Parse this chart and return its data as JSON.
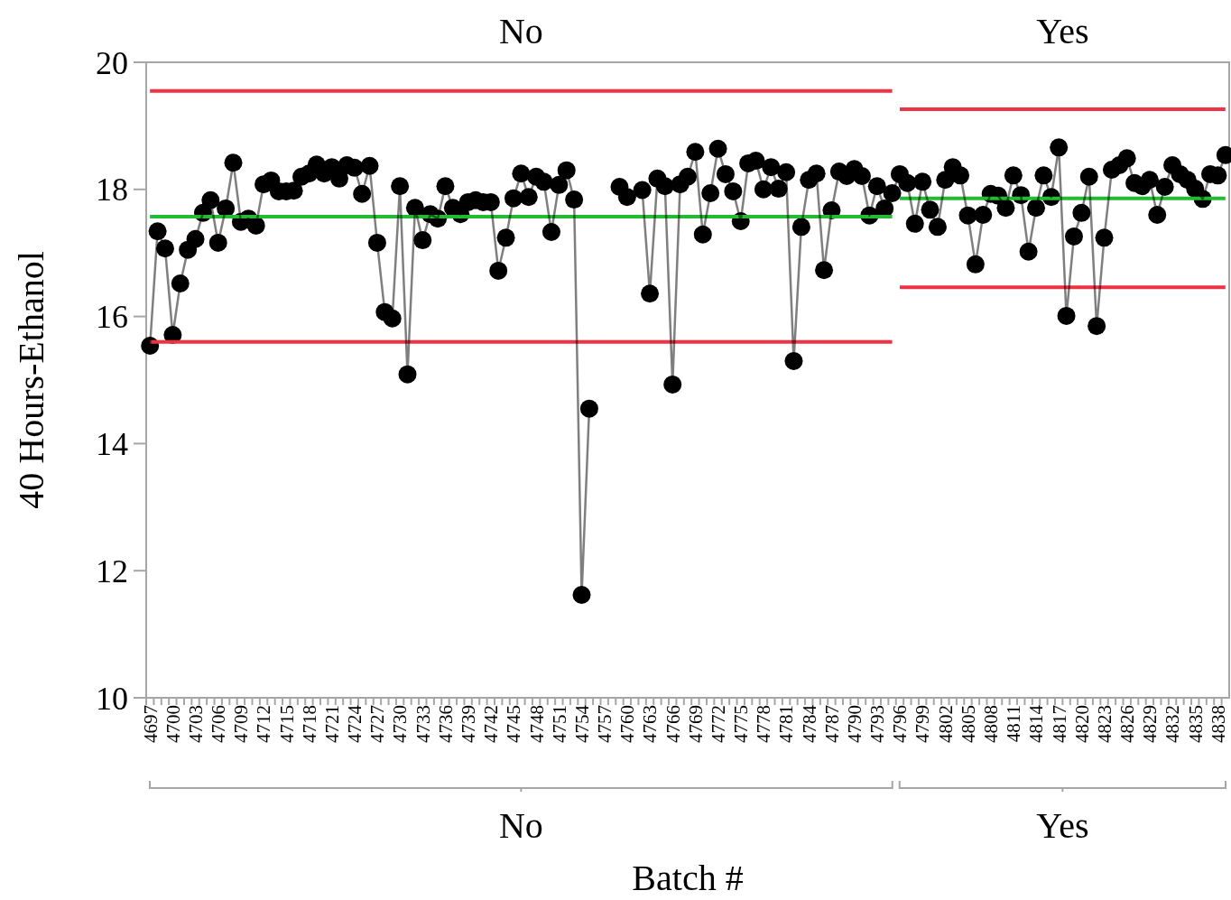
{
  "chart_data": {
    "type": "line",
    "xlabel": "Batch #",
    "ylabel": "40 Hours-Ethanol",
    "categories": [
      "4697",
      null,
      null,
      "4700",
      null,
      null,
      "4703",
      null,
      null,
      "4706",
      null,
      null,
      "4709",
      null,
      null,
      "4712",
      null,
      null,
      "4715",
      null,
      null,
      "4718",
      null,
      null,
      "4721",
      null,
      null,
      "4724",
      null,
      null,
      "4727",
      null,
      null,
      "4730",
      null,
      null,
      "4733",
      null,
      null,
      "4736",
      null,
      null,
      "4739",
      null,
      null,
      "4742",
      null,
      null,
      "4745",
      null,
      null,
      "4748",
      null,
      null,
      "4751",
      null,
      null,
      "4754",
      null,
      null,
      "4757",
      null,
      null,
      "4760",
      null,
      null,
      "4763",
      null,
      null,
      "4766",
      null,
      null,
      "4769",
      null,
      null,
      "4772",
      null,
      null,
      "4775",
      null,
      null,
      "4778",
      null,
      null,
      "4781",
      null,
      null,
      "4784",
      null,
      null,
      "4787",
      null,
      null,
      "4790",
      null,
      null,
      "4793",
      null,
      null,
      "4796",
      null,
      null,
      "4799",
      null,
      null,
      "4802",
      null,
      null,
      "4805",
      null,
      null,
      "4808",
      null,
      null,
      "4811",
      null,
      null,
      "4814",
      null,
      null,
      "4817",
      null,
      null,
      "4820",
      null,
      null,
      "4823",
      null,
      null,
      "4826",
      null,
      null,
      "4829",
      null,
      null,
      "4832",
      null,
      null,
      "4835",
      null,
      null,
      "4838",
      null
    ],
    "series": [
      {
        "color": "#ee3344",
        "values": [
          19.55,
          19.55,
          19.55,
          19.55,
          19.55,
          19.55,
          19.55,
          19.55,
          19.55,
          19.55,
          19.55,
          19.55,
          19.55,
          19.55,
          19.55,
          19.55,
          19.55,
          19.55,
          19.55,
          19.55,
          19.55,
          19.55,
          19.55,
          19.55,
          19.55,
          19.55,
          19.55,
          19.55,
          19.55,
          19.55,
          19.55,
          19.55,
          19.55,
          19.55,
          19.55,
          19.55,
          19.55,
          19.55,
          19.55,
          19.55,
          19.55,
          19.55,
          19.55,
          19.55,
          19.55,
          19.55,
          19.55,
          19.55,
          19.55,
          19.55,
          19.55,
          19.55,
          19.55,
          19.55,
          19.55,
          19.55,
          19.55,
          19.55,
          19.55,
          19.55,
          19.55,
          19.55,
          19.55,
          19.55,
          19.55,
          19.55,
          19.55,
          19.55,
          19.55,
          19.55,
          19.55,
          19.55,
          19.55,
          19.55,
          19.55,
          19.55,
          19.55,
          19.55,
          19.55,
          19.55,
          19.55,
          19.55,
          19.55,
          19.55,
          19.55,
          19.55,
          19.55,
          19.55,
          19.55,
          19.55,
          19.55,
          19.55,
          19.55,
          19.55,
          19.55,
          19.55,
          19.55,
          19.55,
          19.55,
          null,
          null,
          null,
          null,
          null,
          null,
          null,
          null,
          null,
          null,
          null,
          null,
          null,
          null,
          null,
          null,
          null,
          null,
          null,
          null,
          null,
          null,
          null,
          null,
          null,
          null,
          null,
          null,
          null,
          null,
          null,
          null,
          null,
          null,
          null,
          null,
          null,
          null,
          null,
          null,
          null,
          null,
          null,
          null
        ]
      },
      {
        "color": "#22bb33",
        "values": [
          17.57,
          17.57,
          17.57,
          17.57,
          17.57,
          17.57,
          17.57,
          17.57,
          17.57,
          17.57,
          17.57,
          17.57,
          17.57,
          17.57,
          17.57,
          17.57,
          17.57,
          17.57,
          17.57,
          17.57,
          17.57,
          17.57,
          17.57,
          17.57,
          17.57,
          17.57,
          17.57,
          17.57,
          17.57,
          17.57,
          17.57,
          17.57,
          17.57,
          17.57,
          17.57,
          17.57,
          17.57,
          17.57,
          17.57,
          17.57,
          17.57,
          17.57,
          17.57,
          17.57,
          17.57,
          17.57,
          17.57,
          17.57,
          17.57,
          17.57,
          17.57,
          17.57,
          17.57,
          17.57,
          17.57,
          17.57,
          17.57,
          17.57,
          17.57,
          17.57,
          17.57,
          17.57,
          17.57,
          17.57,
          17.57,
          17.57,
          17.57,
          17.57,
          17.57,
          17.57,
          17.57,
          17.57,
          17.57,
          17.57,
          17.57,
          17.57,
          17.57,
          17.57,
          17.57,
          17.57,
          17.57,
          17.57,
          17.57,
          17.57,
          17.57,
          17.57,
          17.57,
          17.57,
          17.57,
          17.57,
          17.57,
          17.57,
          17.57,
          17.57,
          17.57,
          17.57,
          17.57,
          17.57,
          17.57,
          null,
          null,
          null,
          null,
          null,
          null,
          null,
          null,
          null,
          null,
          null,
          null,
          null,
          null,
          null,
          null,
          null,
          null,
          null,
          null,
          null,
          null,
          null,
          null,
          null,
          null,
          null,
          null,
          null,
          null,
          null,
          null,
          null,
          null,
          null,
          null,
          null,
          null,
          null,
          null,
          null,
          null,
          null,
          null
        ]
      },
      {
        "color": "#ee3344",
        "values": [
          15.6,
          15.6,
          15.6,
          15.6,
          15.6,
          15.6,
          15.6,
          15.6,
          15.6,
          15.6,
          15.6,
          15.6,
          15.6,
          15.6,
          15.6,
          15.6,
          15.6,
          15.6,
          15.6,
          15.6,
          15.6,
          15.6,
          15.6,
          15.6,
          15.6,
          15.6,
          15.6,
          15.6,
          15.6,
          15.6,
          15.6,
          15.6,
          15.6,
          15.6,
          15.6,
          15.6,
          15.6,
          15.6,
          15.6,
          15.6,
          15.6,
          15.6,
          15.6,
          15.6,
          15.6,
          15.6,
          15.6,
          15.6,
          15.6,
          15.6,
          15.6,
          15.6,
          15.6,
          15.6,
          15.6,
          15.6,
          15.6,
          15.6,
          15.6,
          15.6,
          15.6,
          15.6,
          15.6,
          15.6,
          15.6,
          15.6,
          15.6,
          15.6,
          15.6,
          15.6,
          15.6,
          15.6,
          15.6,
          15.6,
          15.6,
          15.6,
          15.6,
          15.6,
          15.6,
          15.6,
          15.6,
          15.6,
          15.6,
          15.6,
          15.6,
          15.6,
          15.6,
          15.6,
          15.6,
          15.6,
          15.6,
          15.6,
          15.6,
          15.6,
          15.6,
          15.6,
          15.6,
          15.6,
          15.6,
          null,
          null,
          null,
          null,
          null,
          null,
          null,
          null,
          null,
          null,
          null,
          null,
          null,
          null,
          null,
          null,
          null,
          null,
          null,
          null,
          null,
          null,
          null,
          null,
          null,
          null,
          null,
          null,
          null,
          null,
          null,
          null,
          null,
          null,
          null,
          null,
          null,
          null,
          null,
          null,
          null,
          null,
          null,
          null
        ]
      },
      {
        "color": "#ee3344",
        "values": [
          null,
          null,
          null,
          null,
          null,
          null,
          null,
          null,
          null,
          null,
          null,
          null,
          null,
          null,
          null,
          null,
          null,
          null,
          null,
          null,
          null,
          null,
          null,
          null,
          null,
          null,
          null,
          null,
          null,
          null,
          null,
          null,
          null,
          null,
          null,
          null,
          null,
          null,
          null,
          null,
          null,
          null,
          null,
          null,
          null,
          null,
          null,
          null,
          null,
          null,
          null,
          null,
          null,
          null,
          null,
          null,
          null,
          null,
          null,
          null,
          null,
          null,
          null,
          null,
          null,
          null,
          null,
          null,
          null,
          null,
          null,
          null,
          null,
          null,
          null,
          null,
          null,
          null,
          null,
          null,
          null,
          null,
          null,
          null,
          null,
          null,
          null,
          null,
          null,
          null,
          null,
          null,
          null,
          null,
          null,
          null,
          null,
          null,
          null,
          19.26,
          19.26,
          19.26,
          19.26,
          19.26,
          19.26,
          19.26,
          19.26,
          19.26,
          19.26,
          19.26,
          19.26,
          19.26,
          19.26,
          19.26,
          19.26,
          19.26,
          19.26,
          19.26,
          19.26,
          19.26,
          19.26,
          19.26,
          19.26,
          19.26,
          19.26,
          19.26,
          19.26,
          19.26,
          19.26,
          19.26,
          19.26,
          19.26,
          19.26,
          19.26,
          19.26,
          19.26,
          19.26,
          19.26,
          19.26,
          19.26,
          19.26,
          19.26,
          19.26
        ]
      },
      {
        "color": "#22bb33",
        "values": [
          null,
          null,
          null,
          null,
          null,
          null,
          null,
          null,
          null,
          null,
          null,
          null,
          null,
          null,
          null,
          null,
          null,
          null,
          null,
          null,
          null,
          null,
          null,
          null,
          null,
          null,
          null,
          null,
          null,
          null,
          null,
          null,
          null,
          null,
          null,
          null,
          null,
          null,
          null,
          null,
          null,
          null,
          null,
          null,
          null,
          null,
          null,
          null,
          null,
          null,
          null,
          null,
          null,
          null,
          null,
          null,
          null,
          null,
          null,
          null,
          null,
          null,
          null,
          null,
          null,
          null,
          null,
          null,
          null,
          null,
          null,
          null,
          null,
          null,
          null,
          null,
          null,
          null,
          null,
          null,
          null,
          null,
          null,
          null,
          null,
          null,
          null,
          null,
          null,
          null,
          null,
          null,
          null,
          null,
          null,
          null,
          null,
          null,
          null,
          17.86,
          17.86,
          17.86,
          17.86,
          17.86,
          17.86,
          17.86,
          17.86,
          17.86,
          17.86,
          17.86,
          17.86,
          17.86,
          17.86,
          17.86,
          17.86,
          17.86,
          17.86,
          17.86,
          17.86,
          17.86,
          17.86,
          17.86,
          17.86,
          17.86,
          17.86,
          17.86,
          17.86,
          17.86,
          17.86,
          17.86,
          17.86,
          17.86,
          17.86,
          17.86,
          17.86,
          17.86,
          17.86,
          17.86,
          17.86,
          17.86,
          17.86,
          17.86,
          17.86
        ]
      },
      {
        "color": "#ee3344",
        "values": [
          null,
          null,
          null,
          null,
          null,
          null,
          null,
          null,
          null,
          null,
          null,
          null,
          null,
          null,
          null,
          null,
          null,
          null,
          null,
          null,
          null,
          null,
          null,
          null,
          null,
          null,
          null,
          null,
          null,
          null,
          null,
          null,
          null,
          null,
          null,
          null,
          null,
          null,
          null,
          null,
          null,
          null,
          null,
          null,
          null,
          null,
          null,
          null,
          null,
          null,
          null,
          null,
          null,
          null,
          null,
          null,
          null,
          null,
          null,
          null,
          null,
          null,
          null,
          null,
          null,
          null,
          null,
          null,
          null,
          null,
          null,
          null,
          null,
          null,
          null,
          null,
          null,
          null,
          null,
          null,
          null,
          null,
          null,
          null,
          null,
          null,
          null,
          null,
          null,
          null,
          null,
          null,
          null,
          null,
          null,
          null,
          null,
          null,
          null,
          16.46,
          16.46,
          16.46,
          16.46,
          16.46,
          16.46,
          16.46,
          16.46,
          16.46,
          16.46,
          16.46,
          16.46,
          16.46,
          16.46,
          16.46,
          16.46,
          16.46,
          16.46,
          16.46,
          16.46,
          16.46,
          16.46,
          16.46,
          16.46,
          16.46,
          16.46,
          16.46,
          16.46,
          16.46,
          16.46,
          16.46,
          16.46,
          16.46,
          16.46,
          16.46,
          16.46,
          16.46,
          16.46,
          16.46,
          16.46,
          16.46,
          16.46,
          16.46,
          16.46
        ]
      },
      {
        "color": "#000000",
        "marker": "circle",
        "values": [
          15.54,
          17.34,
          17.07,
          15.71,
          16.52,
          17.05,
          17.22,
          17.63,
          17.83,
          17.16,
          17.7,
          18.42,
          17.49,
          17.54,
          17.43,
          18.08,
          18.14,
          17.97,
          17.97,
          17.98,
          18.2,
          18.25,
          18.39,
          18.25,
          18.35,
          18.17,
          18.38,
          18.34,
          17.93,
          18.37,
          17.16,
          16.07,
          15.97,
          18.05,
          15.09,
          17.71,
          17.2,
          17.61,
          17.54,
          18.05,
          17.71,
          17.61,
          17.8,
          17.83,
          17.8,
          17.8,
          16.72,
          17.24,
          17.86,
          18.25,
          17.88,
          18.2,
          18.12,
          17.33,
          18.07,
          18.3,
          17.84,
          11.62,
          14.55,
          null,
          null,
          null,
          18.04,
          17.88,
          null,
          17.99,
          16.36,
          18.17,
          18.05,
          14.93,
          18.08,
          18.2,
          18.59,
          17.29,
          17.94,
          18.64,
          18.24,
          17.97,
          17.5,
          18.41,
          18.45,
          18.0,
          18.35,
          18.01,
          18.27,
          15.3,
          17.41,
          18.15,
          18.25,
          16.73,
          17.67,
          18.28,
          18.21,
          18.32,
          18.21,
          17.59,
          18.05,
          17.7,
          17.94,
          18.24,
          18.1,
          17.46,
          18.12,
          17.68,
          17.41,
          18.15,
          18.35,
          18.22,
          17.59,
          16.82,
          17.6,
          17.93,
          17.9,
          17.71,
          18.22,
          17.91,
          17.02,
          17.71,
          18.22,
          17.88,
          18.66,
          16.01,
          17.26,
          17.63,
          18.2,
          15.85,
          17.24,
          18.31,
          18.38,
          18.49,
          18.1,
          18.05,
          18.15,
          17.6,
          18.04,
          18.38,
          18.24,
          18.15,
          18.01,
          17.85,
          18.24,
          18.22,
          18.54
        ]
      }
    ],
    "annotations": [
      "No",
      "Yes"
    ],
    "ylim": [
      10,
      20
    ],
    "yticks": [
      10,
      12,
      14,
      16,
      18,
      20
    ],
    "grid": false,
    "line_style": "solid"
  }
}
